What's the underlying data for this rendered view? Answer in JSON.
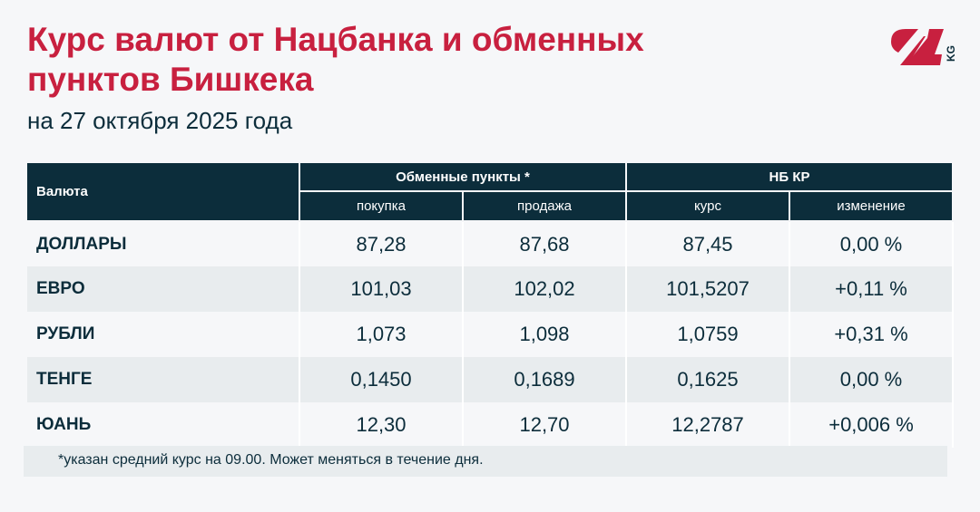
{
  "title": "Курс валют от Нацбанка и обменных пунктов Бишкека",
  "subtitle": "на 27 октября 2025 года",
  "logo": {
    "text": "24 KG",
    "color": "#c8203f"
  },
  "colors": {
    "accent": "#c8203f",
    "header": "#0c2d3b"
  },
  "table": {
    "currency_header": "Валюта",
    "group1": "Обменные пункты *",
    "group2": "НБ КР",
    "sub": [
      "покупка",
      "продажа",
      "курс",
      "изменение"
    ],
    "rows": [
      {
        "name": "ДОЛЛАРЫ",
        "buy": "87,28",
        "sell": "87,68",
        "rate": "87,45",
        "change": "0,00 %"
      },
      {
        "name": "ЕВРО",
        "buy": "101,03",
        "sell": "102,02",
        "rate": "101,5207",
        "change": "+0,11 %"
      },
      {
        "name": "РУБЛИ",
        "buy": "1,073",
        "sell": "1,098",
        "rate": "1,0759",
        "change": "+0,31 %"
      },
      {
        "name": "ТЕНГЕ",
        "buy": "0,1450",
        "sell": "0,1689",
        "rate": "0,1625",
        "change": "0,00 %"
      },
      {
        "name": "ЮАНЬ",
        "buy": "12,30",
        "sell": "12,70",
        "rate": "12,2787",
        "change": "+0,006 %"
      }
    ]
  },
  "footnote": "*указан средний курс на 09.00. Может меняться в течение дня."
}
